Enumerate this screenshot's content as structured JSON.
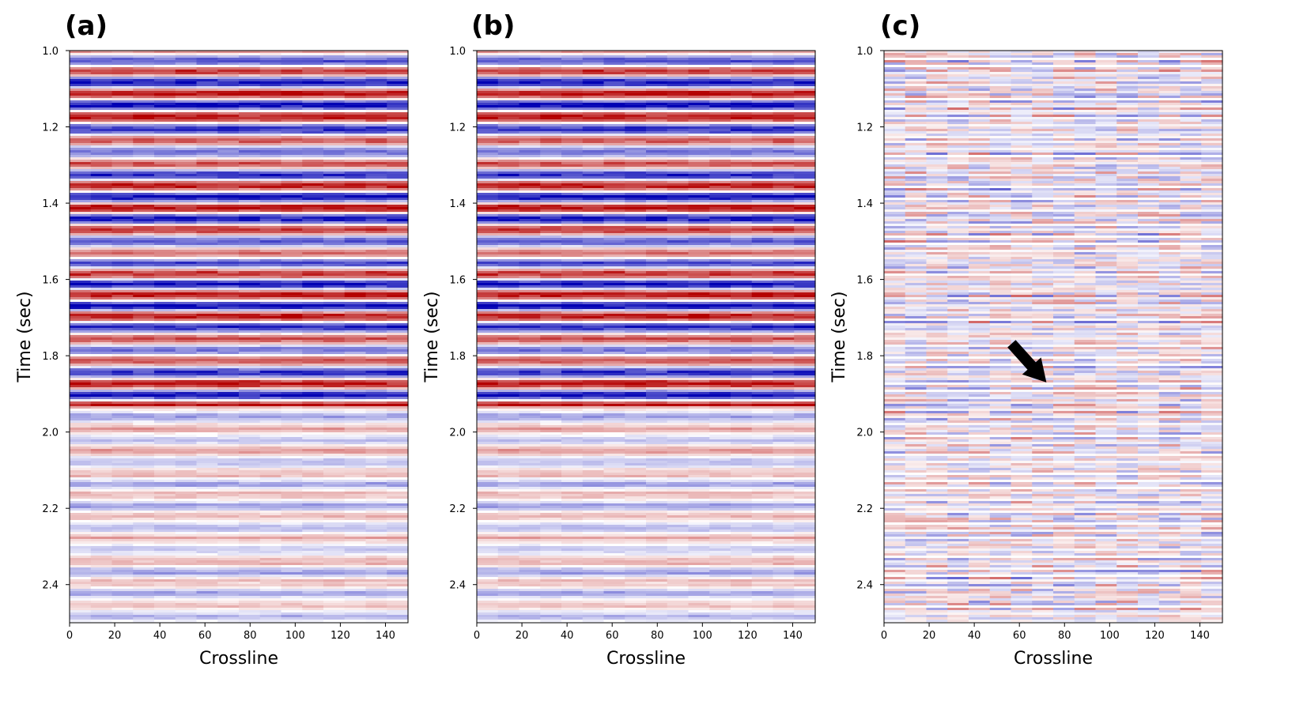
{
  "figure": {
    "description_free": true
  },
  "chart_data": [
    {
      "type": "heatmap",
      "panel_label": "(a)",
      "xlabel": "Crossline",
      "ylabel": "Time (sec)",
      "xlim": [
        0,
        150
      ],
      "ylim": [
        1.0,
        2.5
      ],
      "x_ticks": [
        "0",
        "20",
        "40",
        "60",
        "80",
        "100",
        "120",
        "140"
      ],
      "y_ticks": [
        "1.0",
        "1.2",
        "1.4",
        "1.6",
        "1.8",
        "2.0",
        "2.2",
        "2.4"
      ],
      "colormap": [
        "#0000b4",
        "#ffffff",
        "#b40000"
      ],
      "pattern": "coherent",
      "seed": 7
    },
    {
      "type": "heatmap",
      "panel_label": "(b)",
      "xlabel": "Crossline",
      "ylabel": "Time (sec)",
      "xlim": [
        0,
        150
      ],
      "ylim": [
        1.0,
        2.5
      ],
      "x_ticks": [
        "0",
        "20",
        "40",
        "60",
        "80",
        "100",
        "120",
        "140"
      ],
      "y_ticks": [
        "1.0",
        "1.2",
        "1.4",
        "1.6",
        "1.8",
        "2.0",
        "2.2",
        "2.4"
      ],
      "colormap": [
        "#0000b4",
        "#ffffff",
        "#b40000"
      ],
      "pattern": "coherent",
      "seed": 7
    },
    {
      "type": "heatmap",
      "panel_label": "(c)",
      "xlabel": "Crossline",
      "ylabel": "Time (sec)",
      "xlim": [
        0,
        150
      ],
      "ylim": [
        1.0,
        2.5
      ],
      "x_ticks": [
        "0",
        "20",
        "40",
        "60",
        "80",
        "100",
        "120",
        "140"
      ],
      "y_ticks": [
        "1.0",
        "1.2",
        "1.4",
        "1.6",
        "1.8",
        "2.0",
        "2.2",
        "2.4"
      ],
      "colormap": [
        "#0000b4",
        "#ffffff",
        "#b40000"
      ],
      "pattern": "residual",
      "seed": 13,
      "annotation": {
        "type": "arrow",
        "points_to": {
          "x": 72,
          "y": 1.87
        }
      }
    }
  ]
}
